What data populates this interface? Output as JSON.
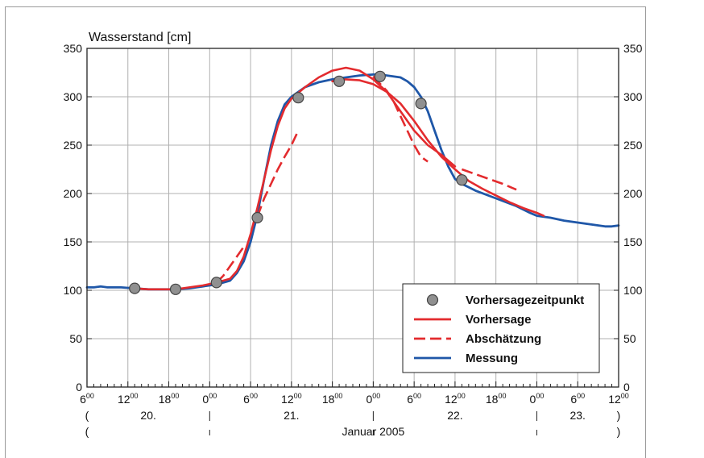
{
  "chart_data": {
    "type": "line",
    "ylabel": "Wasserstand [cm]",
    "xlabel": "Januar 2005",
    "ylim": [
      0,
      350
    ],
    "yticks": [
      0,
      50,
      100,
      150,
      200,
      250,
      300,
      350
    ],
    "xlim_hours": [
      0,
      78
    ],
    "grid": true,
    "legend_position": "bottom-right",
    "x_tick_labels": [
      {
        "hour": 0,
        "text": "6",
        "sup": "00"
      },
      {
        "hour": 6,
        "text": "12",
        "sup": "00"
      },
      {
        "hour": 12,
        "text": "18",
        "sup": "00"
      },
      {
        "hour": 18,
        "text": "0",
        "sup": "00"
      },
      {
        "hour": 24,
        "text": "6",
        "sup": "00"
      },
      {
        "hour": 30,
        "text": "12",
        "sup": "00"
      },
      {
        "hour": 36,
        "text": "18",
        "sup": "00"
      },
      {
        "hour": 42,
        "text": "0",
        "sup": "00"
      },
      {
        "hour": 48,
        "text": "6",
        "sup": "00"
      },
      {
        "hour": 54,
        "text": "12",
        "sup": "00"
      },
      {
        "hour": 60,
        "text": "18",
        "sup": "00"
      },
      {
        "hour": 66,
        "text": "0",
        "sup": "00"
      },
      {
        "hour": 72,
        "text": "6",
        "sup": "00"
      },
      {
        "hour": 78,
        "text": "12",
        "sup": "00"
      }
    ],
    "day_labels": [
      {
        "hour": 9,
        "text": "20."
      },
      {
        "hour": 30,
        "text": "21."
      },
      {
        "hour": 54,
        "text": "22."
      },
      {
        "hour": 72,
        "text": "23."
      }
    ],
    "day_separators": [
      18,
      42,
      66
    ],
    "bracket_open": "(",
    "bracket_close": ")",
    "month_label": "Januar 2005",
    "series": [
      {
        "name": "Messung",
        "color": "#1f57a8",
        "style": "solid",
        "points": [
          [
            0,
            103
          ],
          [
            1,
            103
          ],
          [
            2,
            104
          ],
          [
            3,
            103
          ],
          [
            5,
            103
          ],
          [
            7,
            102
          ],
          [
            9,
            101
          ],
          [
            11,
            101
          ],
          [
            13,
            101
          ],
          [
            15,
            102
          ],
          [
            17,
            104
          ],
          [
            19,
            106
          ],
          [
            21,
            110
          ],
          [
            22,
            118
          ],
          [
            23,
            130
          ],
          [
            24,
            150
          ],
          [
            25,
            178
          ],
          [
            26,
            215
          ],
          [
            27,
            250
          ],
          [
            28,
            275
          ],
          [
            29,
            292
          ],
          [
            30,
            300
          ],
          [
            32,
            310
          ],
          [
            34,
            315
          ],
          [
            36,
            318
          ],
          [
            38,
            320
          ],
          [
            40,
            322
          ],
          [
            42,
            323
          ],
          [
            43,
            323
          ],
          [
            44,
            322
          ],
          [
            46,
            320
          ],
          [
            47,
            316
          ],
          [
            48,
            310
          ],
          [
            49,
            300
          ],
          [
            50,
            285
          ],
          [
            51,
            265
          ],
          [
            52,
            245
          ],
          [
            53,
            228
          ],
          [
            54,
            215
          ],
          [
            55,
            210
          ],
          [
            57,
            203
          ],
          [
            60,
            195
          ],
          [
            63,
            187
          ],
          [
            65,
            180
          ],
          [
            66,
            177
          ],
          [
            68,
            175
          ],
          [
            70,
            172
          ],
          [
            72,
            170
          ],
          [
            74,
            168
          ],
          [
            76,
            166
          ],
          [
            77,
            166
          ],
          [
            78,
            167
          ]
        ]
      },
      {
        "name": "Vorhersage",
        "color": "#e32b2e",
        "style": "solid",
        "segments": [
          [
            [
              7,
              102
            ],
            [
              9,
              101
            ],
            [
              11,
              101
            ],
            [
              13,
              101
            ],
            [
              15,
              103
            ],
            [
              17,
              105
            ],
            [
              19,
              108
            ]
          ],
          [
            [
              19,
              108
            ],
            [
              21,
              112
            ],
            [
              22,
              120
            ],
            [
              23,
              135
            ],
            [
              24,
              158
            ],
            [
              25,
              185
            ],
            [
              26,
              215
            ],
            [
              27,
              245
            ],
            [
              28,
              270
            ],
            [
              29,
              288
            ],
            [
              30,
              298
            ]
          ],
          [
            [
              30,
              298
            ],
            [
              32,
              310
            ],
            [
              34,
              320
            ],
            [
              36,
              327
            ],
            [
              38,
              330
            ],
            [
              40,
              327
            ],
            [
              42,
              318
            ],
            [
              44,
              305
            ],
            [
              46,
              285
            ],
            [
              48,
              265
            ],
            [
              50,
              250
            ],
            [
              52,
              240
            ],
            [
              54,
              228
            ]
          ],
          [
            [
              36,
              316
            ],
            [
              38,
              318
            ],
            [
              40,
              317
            ],
            [
              42,
              313
            ],
            [
              44,
              305
            ],
            [
              46,
              293
            ],
            [
              48,
              275
            ],
            [
              50,
              255
            ],
            [
              52,
              238
            ],
            [
              54,
              225
            ],
            [
              56,
              213
            ],
            [
              58,
              205
            ],
            [
              60,
              198
            ],
            [
              62,
              191
            ],
            [
              64,
              185
            ],
            [
              66,
              180
            ],
            [
              67,
              177
            ]
          ]
        ]
      },
      {
        "name": "Abschätzung",
        "color": "#e32b2e",
        "style": "dashed",
        "segments": [
          [
            [
              19,
              108
            ],
            [
              20,
              115
            ],
            [
              21,
              125
            ],
            [
              22,
              135
            ],
            [
              23,
              145
            ]
          ],
          [
            [
              25,
              176
            ],
            [
              26,
              195
            ],
            [
              27,
              210
            ],
            [
              28,
              225
            ],
            [
              29,
              238
            ],
            [
              30,
              250
            ],
            [
              31,
              265
            ]
          ],
          [
            [
              42,
              321
            ],
            [
              44,
              306
            ],
            [
              45,
              295
            ],
            [
              46,
              280
            ],
            [
              47,
              265
            ],
            [
              48,
              250
            ],
            [
              49,
              238
            ],
            [
              50,
              233
            ]
          ],
          [
            [
              55,
              225
            ],
            [
              57,
              220
            ],
            [
              59,
              215
            ],
            [
              61,
              210
            ],
            [
              62,
              207
            ],
            [
              63,
              204
            ]
          ]
        ]
      },
      {
        "name": "Vorhersagezeitpunkt",
        "color": "#909090",
        "style": "marker",
        "points": [
          [
            7,
            102
          ],
          [
            13,
            101
          ],
          [
            19,
            108
          ],
          [
            25,
            175
          ],
          [
            31,
            299
          ],
          [
            37,
            316
          ],
          [
            43,
            321
          ],
          [
            49,
            293
          ],
          [
            55,
            214
          ]
        ]
      }
    ],
    "legend": [
      {
        "label": "Vorhersagezeitpunkt",
        "kind": "marker",
        "color": "#909090"
      },
      {
        "label": "Vorhersage",
        "kind": "solid",
        "color": "#e32b2e"
      },
      {
        "label": "Abschätzung",
        "kind": "dashed",
        "color": "#e32b2e"
      },
      {
        "label": "Messung",
        "kind": "solid",
        "color": "#1f57a8"
      }
    ]
  }
}
